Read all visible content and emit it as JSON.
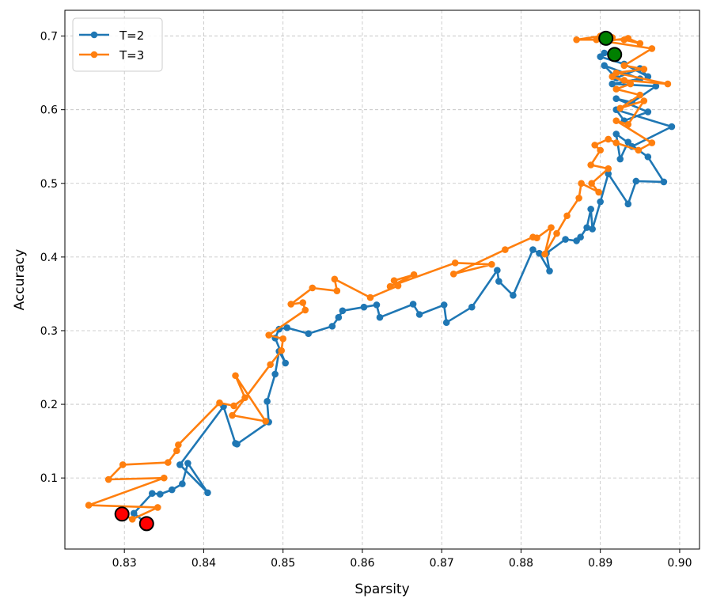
{
  "chart_data": {
    "type": "line",
    "title": "",
    "xlabel": "Sparsity",
    "ylabel": "Accuracy",
    "xlim": [
      0.8225,
      0.9025
    ],
    "ylim": [
      0.0035,
      0.735
    ],
    "x_ticks": [
      "0.83",
      "0.84",
      "0.85",
      "0.86",
      "0.87",
      "0.88",
      "0.89",
      "0.90"
    ],
    "y_ticks": [
      "0.1",
      "0.2",
      "0.3",
      "0.4",
      "0.5",
      "0.6",
      "0.7"
    ],
    "grid": true,
    "legend_position": "top-left",
    "series": [
      {
        "name": "T=2",
        "color": "#1f77b4",
        "x": [
          0.8328,
          0.8312,
          0.8335,
          0.8345,
          0.836,
          0.8373,
          0.838,
          0.8405,
          0.837,
          0.8425,
          0.844,
          0.8442,
          0.8482,
          0.848,
          0.849,
          0.8495,
          0.8503,
          0.849,
          0.8495,
          0.8505,
          0.8532,
          0.8562,
          0.857,
          0.8575,
          0.8602,
          0.8618,
          0.8622,
          0.8664,
          0.8672,
          0.8703,
          0.8706,
          0.8738,
          0.877,
          0.8772,
          0.879,
          0.8815,
          0.8823,
          0.8836,
          0.8832,
          0.8856,
          0.887,
          0.8875,
          0.8883,
          0.8888,
          0.889,
          0.89,
          0.891,
          0.8935,
          0.8945,
          0.898,
          0.896,
          0.892,
          0.8925,
          0.8935,
          0.894,
          0.899,
          0.892,
          0.893,
          0.896,
          0.892,
          0.894,
          0.897,
          0.8915,
          0.895,
          0.8905,
          0.892,
          0.895,
          0.896,
          0.893,
          0.89,
          0.8905,
          0.8915
        ],
        "y": [
          0.038,
          0.052,
          0.079,
          0.078,
          0.084,
          0.092,
          0.12,
          0.08,
          0.118,
          0.197,
          0.147,
          0.146,
          0.176,
          0.204,
          0.241,
          0.272,
          0.256,
          0.29,
          0.302,
          0.304,
          0.296,
          0.306,
          0.318,
          0.327,
          0.332,
          0.335,
          0.318,
          0.336,
          0.322,
          0.335,
          0.311,
          0.332,
          0.382,
          0.367,
          0.348,
          0.41,
          0.405,
          0.381,
          0.405,
          0.424,
          0.422,
          0.427,
          0.44,
          0.465,
          0.438,
          0.475,
          0.513,
          0.472,
          0.503,
          0.502,
          0.536,
          0.567,
          0.533,
          0.556,
          0.55,
          0.577,
          0.6,
          0.585,
          0.597,
          0.615,
          0.61,
          0.632,
          0.635,
          0.642,
          0.66,
          0.643,
          0.656,
          0.645,
          0.662,
          0.672,
          0.677,
          0.675
        ]
      },
      {
        "name": "T=3",
        "color": "#ff7f0e",
        "x": [
          0.8297,
          0.831,
          0.8342,
          0.8255,
          0.835,
          0.828,
          0.8298,
          0.8355,
          0.8366,
          0.8368,
          0.842,
          0.8438,
          0.8452,
          0.844,
          0.8478,
          0.8436,
          0.8484,
          0.8498,
          0.85,
          0.8482,
          0.8528,
          0.8525,
          0.851,
          0.8537,
          0.8568,
          0.8565,
          0.861,
          0.8645,
          0.864,
          0.8665,
          0.8635,
          0.8717,
          0.8763,
          0.8715,
          0.878,
          0.8815,
          0.882,
          0.8838,
          0.883,
          0.8845,
          0.8858,
          0.8873,
          0.8876,
          0.8898,
          0.8889,
          0.891,
          0.8888,
          0.89,
          0.8893,
          0.891,
          0.892,
          0.8948,
          0.8965,
          0.892,
          0.8935,
          0.8955,
          0.8925,
          0.895,
          0.892,
          0.8938,
          0.8915,
          0.893,
          0.8985,
          0.892,
          0.8955,
          0.893,
          0.8965,
          0.8905,
          0.8935,
          0.895,
          0.893,
          0.887,
          0.89,
          0.8915,
          0.8895
        ],
        "y": [
          0.051,
          0.044,
          0.06,
          0.063,
          0.1,
          0.098,
          0.118,
          0.121,
          0.137,
          0.145,
          0.202,
          0.198,
          0.209,
          0.239,
          0.177,
          0.185,
          0.254,
          0.273,
          0.289,
          0.294,
          0.328,
          0.338,
          0.336,
          0.358,
          0.354,
          0.37,
          0.345,
          0.361,
          0.368,
          0.376,
          0.36,
          0.392,
          0.39,
          0.377,
          0.41,
          0.427,
          0.426,
          0.44,
          0.404,
          0.432,
          0.456,
          0.48,
          0.5,
          0.488,
          0.5,
          0.52,
          0.525,
          0.545,
          0.552,
          0.56,
          0.555,
          0.545,
          0.555,
          0.585,
          0.58,
          0.612,
          0.602,
          0.62,
          0.628,
          0.635,
          0.645,
          0.64,
          0.635,
          0.65,
          0.655,
          0.66,
          0.683,
          0.693,
          0.697,
          0.69,
          0.695,
          0.695,
          0.7,
          0.698,
          0.695
        ]
      }
    ],
    "markers": {
      "start": {
        "color": "#ff0000",
        "points": [
          {
            "x": 0.8297,
            "y": 0.051
          },
          {
            "x": 0.8328,
            "y": 0.038
          }
        ]
      },
      "end": {
        "color": "#008000",
        "points": [
          {
            "x": 0.8907,
            "y": 0.697
          },
          {
            "x": 0.8918,
            "y": 0.675
          }
        ]
      }
    }
  }
}
